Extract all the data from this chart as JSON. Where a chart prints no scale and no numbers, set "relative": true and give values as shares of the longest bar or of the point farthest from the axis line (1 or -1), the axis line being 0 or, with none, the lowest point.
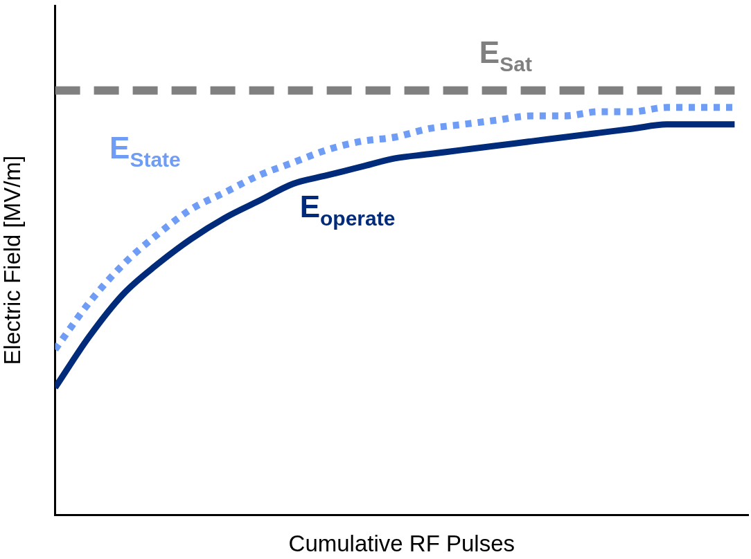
{
  "chart_data": {
    "type": "line",
    "relative": true,
    "xlabel": "Cumulative RF Pulses",
    "ylabel": "Electric Field [MV/m]",
    "categories": [
      null,
      null,
      null,
      null,
      null,
      null,
      null,
      null,
      null,
      null,
      null,
      null,
      null,
      null,
      null,
      null,
      null,
      null,
      null,
      null,
      null
    ],
    "grid": false,
    "legend": false,
    "marker": "none",
    "series": [
      {
        "name": "E$_{Sat}$",
        "color": "#808080",
        "line_style": "dashed",
        "values": [
          1,
          1,
          1,
          1,
          1,
          1,
          1,
          1,
          1,
          1,
          1,
          1,
          1,
          1,
          1,
          1,
          1,
          1,
          1,
          1,
          1
        ]
      },
      {
        "name": "E$_{State}$",
        "color": "#6f9cf5",
        "line_style": "dotted",
        "values": [
          0.39,
          0.5,
          0.59,
          0.66,
          0.72,
          0.76,
          0.8,
          0.83,
          0.86,
          0.88,
          0.89,
          0.91,
          0.92,
          0.93,
          0.94,
          0.94,
          0.95,
          0.95,
          0.96,
          0.96,
          0.96
        ]
      },
      {
        "name": "E$_{operate}$",
        "color": "#002a7a",
        "line_style": "solid",
        "values": [
          0.3,
          0.42,
          0.52,
          0.59,
          0.65,
          0.7,
          0.74,
          0.78,
          0.8,
          0.82,
          0.84,
          0.85,
          0.86,
          0.87,
          0.88,
          0.89,
          0.9,
          0.91,
          0.92,
          0.92,
          0.92
        ]
      }
    ]
  }
}
